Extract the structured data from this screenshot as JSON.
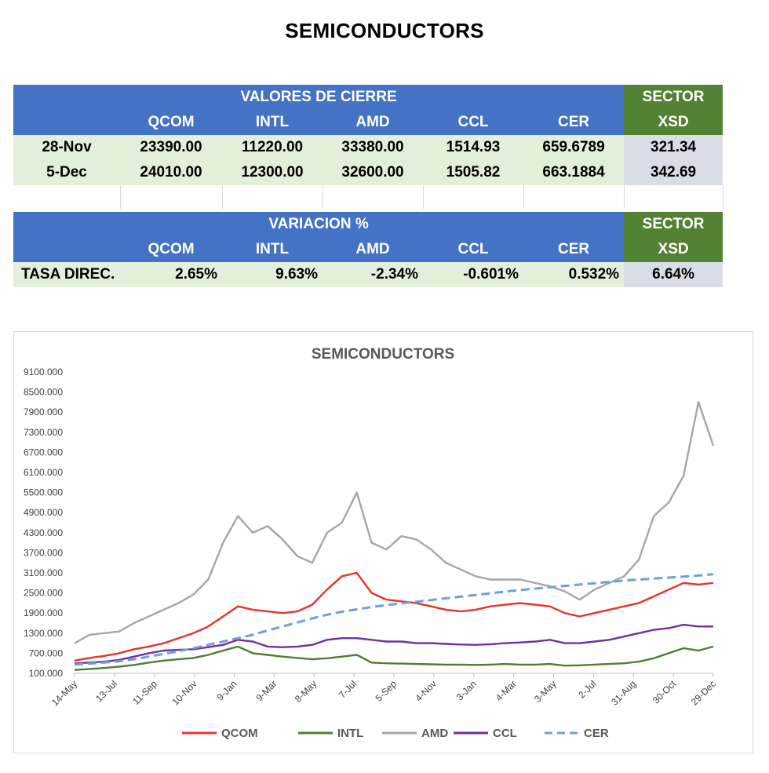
{
  "page_title": "SEMICONDUCTORS",
  "table_closing": {
    "header": "VALORES DE CIERRE",
    "sector_header": "SECTOR",
    "columns": [
      "QCOM",
      "INTL",
      "AMD",
      "CCL",
      "CER"
    ],
    "sector_column": "XSD",
    "rows": [
      {
        "label": "28-Nov",
        "values": [
          "23390.00",
          "11220.00",
          "33380.00",
          "1514.93",
          "659.6789"
        ],
        "sector": "321.34"
      },
      {
        "label": "5-Dec",
        "values": [
          "24010.00",
          "12300.00",
          "32600.00",
          "1505.82",
          "663.1884"
        ],
        "sector": "342.69"
      }
    ]
  },
  "table_variation": {
    "header": "VARIACION %",
    "sector_header": "SECTOR",
    "columns": [
      "QCOM",
      "INTL",
      "AMD",
      "CCL",
      "CER"
    ],
    "sector_column": "XSD",
    "rows": [
      {
        "label": "TASA DIREC.",
        "values": [
          "2.65%",
          "9.63%",
          "-2.34%",
          "-0.601%",
          "0.532%"
        ],
        "sector": "6.64%"
      }
    ]
  },
  "colors": {
    "table_header": "#4472c4",
    "sector_header": "#548235",
    "row_fill": "#e2efda",
    "sector_fill": "#d9dde6",
    "QCOM": "#e8322b",
    "INTL": "#507e32",
    "AMD": "#a6a6a6",
    "CCL": "#7030a0",
    "CER": "#6f9fd8"
  },
  "chart_data": {
    "type": "line",
    "title": "SEMICONDUCTORS",
    "xlabel": "",
    "ylabel": "",
    "ylim": [
      100,
      9100
    ],
    "y_ticks": [
      "100.000",
      "700.000",
      "1300.000",
      "1900.000",
      "2500.000",
      "3100.000",
      "3700.000",
      "4300.000",
      "4900.000",
      "5500.000",
      "6100.000",
      "6700.000",
      "7300.000",
      "7900.000",
      "8500.000",
      "9100.000"
    ],
    "x_ticks": [
      "14-May",
      "13-Jul",
      "11-Sep",
      "10-Nov",
      "9-Jan",
      "9-Mar",
      "8-May",
      "7-Jul",
      "5-Sep",
      "4-Nov",
      "3-Jan",
      "4-Mar",
      "3-May",
      "2-Jul",
      "31-Aug",
      "30-Oct",
      "29-Dec"
    ],
    "grid": false,
    "legend": "bottom",
    "series": [
      {
        "name": "QCOM",
        "style": "solid",
        "values": [
          480,
          560,
          620,
          700,
          820,
          900,
          1000,
          1150,
          1300,
          1500,
          1800,
          2100,
          2000,
          1950,
          1900,
          1950,
          2150,
          2600,
          3000,
          3100,
          2500,
          2300,
          2250,
          2200,
          2100,
          2000,
          1950,
          2000,
          2100,
          2150,
          2200,
          2150,
          2100,
          1900,
          1800,
          1900,
          2000,
          2100,
          2200,
          2400,
          2600,
          2800,
          2750,
          2800
        ]
      },
      {
        "name": "INTL",
        "style": "solid",
        "values": [
          200,
          230,
          260,
          300,
          350,
          420,
          480,
          520,
          560,
          650,
          780,
          900,
          700,
          650,
          600,
          560,
          520,
          550,
          600,
          650,
          420,
          400,
          390,
          380,
          370,
          360,
          360,
          350,
          360,
          380,
          360,
          360,
          380,
          330,
          340,
          360,
          380,
          400,
          450,
          550,
          700,
          850,
          780,
          900
        ]
      },
      {
        "name": "AMD",
        "style": "solid",
        "values": [
          1000,
          1250,
          1300,
          1350,
          1600,
          1800,
          2000,
          2200,
          2450,
          2900,
          4000,
          4800,
          4300,
          4500,
          4100,
          3600,
          3400,
          4300,
          4600,
          5500,
          4000,
          3800,
          4200,
          4100,
          3800,
          3400,
          3200,
          3000,
          2900,
          2900,
          2900,
          2800,
          2700,
          2550,
          2300,
          2600,
          2800,
          3000,
          3500,
          4800,
          5200,
          6000,
          8200,
          6900
        ]
      },
      {
        "name": "CCL",
        "style": "solid",
        "values": [
          400,
          420,
          450,
          500,
          600,
          700,
          780,
          800,
          820,
          880,
          950,
          1100,
          1050,
          900,
          880,
          900,
          950,
          1100,
          1150,
          1150,
          1100,
          1050,
          1050,
          1000,
          1000,
          980,
          960,
          950,
          970,
          1000,
          1020,
          1050,
          1100,
          1000,
          1000,
          1050,
          1100,
          1200,
          1300,
          1400,
          1450,
          1550,
          1500,
          1500
        ]
      },
      {
        "name": "CER",
        "style": "dashed",
        "values": [
          360,
          390,
          420,
          460,
          520,
          600,
          680,
          760,
          850,
          950,
          1050,
          1150,
          1250,
          1380,
          1500,
          1620,
          1740,
          1850,
          1940,
          2010,
          2080,
          2140,
          2190,
          2240,
          2290,
          2340,
          2390,
          2440,
          2490,
          2540,
          2590,
          2630,
          2670,
          2710,
          2750,
          2790,
          2830,
          2870,
          2900,
          2930,
          2960,
          2990,
          3020,
          3060
        ]
      }
    ]
  }
}
